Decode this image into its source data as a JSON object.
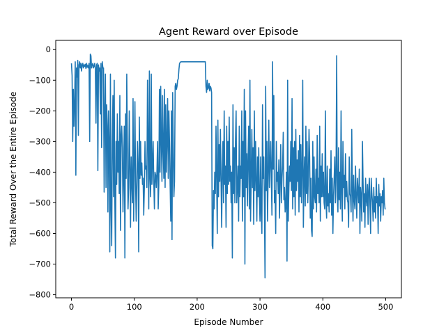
{
  "chart_data": {
    "type": "line",
    "title": "Agent Reward over Episode",
    "xlabel": "Episode Number",
    "ylabel": "Total Reward Over the Entire Episode",
    "xlim": [
      -25,
      525
    ],
    "ylim": [
      -810,
      30
    ],
    "xticks": [
      0,
      100,
      200,
      300,
      400,
      500
    ],
    "yticks": [
      0,
      -100,
      -200,
      -300,
      -400,
      -500,
      -600,
      -700,
      -800
    ],
    "xtick_labels": [
      "0",
      "100",
      "200",
      "300",
      "400",
      "500"
    ],
    "ytick_labels": [
      "0",
      "−100",
      "−200",
      "−300",
      "−400",
      "−500",
      "−600",
      "−700",
      "−800"
    ],
    "grid": false,
    "line_color": "#1f77b4",
    "series": [
      {
        "values": [
          -45,
          -85,
          -300,
          -130,
          -250,
          -180,
          -40,
          -410,
          -60,
          -90,
          -35,
          -280,
          -50,
          -40,
          -60,
          -45,
          -70,
          -50,
          -45,
          -60,
          -50,
          -55,
          -48,
          -62,
          -45,
          -58,
          -52,
          -60,
          -45,
          -300,
          -15,
          -20,
          -60,
          -50,
          -45,
          -60,
          -55,
          -45,
          -60,
          -240,
          -50,
          -45,
          -395,
          -50,
          -70,
          -60,
          -210,
          -45,
          -320,
          -40,
          -60,
          -60,
          -465,
          -200,
          -80,
          -450,
          -180,
          -250,
          -530,
          -200,
          -300,
          -660,
          -80,
          -520,
          -640,
          -300,
          -150,
          -480,
          -100,
          -490,
          -680,
          -300,
          -440,
          -210,
          -400,
          -300,
          -470,
          -150,
          -590,
          -280,
          -250,
          -320,
          -530,
          -400,
          -250,
          -680,
          -210,
          -420,
          -80,
          -320,
          -520,
          -450,
          -200,
          -380,
          -580,
          -350,
          -430,
          -500,
          -160,
          -560,
          -380,
          -170,
          -430,
          -560,
          -440,
          -300,
          -380,
          -660,
          -220,
          -420,
          -300,
          -410,
          -370,
          -440,
          -420,
          -540,
          -450,
          -300,
          -390,
          -380,
          -450,
          -100,
          -300,
          -520,
          -70,
          -420,
          -480,
          -80,
          -440,
          -380,
          -300,
          -430,
          -520,
          -400,
          -410,
          -450,
          -400,
          -300,
          -520,
          -440,
          -130,
          -400,
          -120,
          -300,
          -430,
          -150,
          -320,
          -420,
          -130,
          -450,
          -180,
          -400,
          -300,
          -160,
          -420,
          -200,
          -300,
          -440,
          -560,
          -200,
          -620,
          -140,
          -320,
          -480,
          -430,
          -120,
          -110,
          -130,
          -120,
          -100,
          -95,
          -65,
          -45,
          -42,
          -40,
          -40,
          -40,
          -40,
          -40,
          -40,
          -40,
          -40,
          -40,
          -40,
          -40,
          -40,
          -40,
          -40,
          -40,
          -40,
          -40,
          -40,
          -40,
          -40,
          -40,
          -40,
          -40,
          -40,
          -40,
          -40,
          -40,
          -40,
          -40,
          -40,
          -40,
          -40,
          -40,
          -40,
          -40,
          -40,
          -40,
          -40,
          -40,
          -40,
          -120,
          -140,
          -100,
          -130,
          -125,
          -110,
          -135,
          -120,
          -125,
          -140,
          -640,
          -650,
          -460,
          -520,
          -400,
          -470,
          -250,
          -410,
          -600,
          -230,
          -480,
          -310,
          -430,
          -260,
          -420,
          -580,
          -390,
          -300,
          -500,
          -200,
          -440,
          -380,
          -580,
          -250,
          -470,
          -300,
          -440,
          -220,
          -430,
          -380,
          -500,
          -400,
          -680,
          -180,
          -470,
          -320,
          -500,
          -300,
          -200,
          -500,
          -450,
          -380,
          -560,
          -250,
          -480,
          -380,
          -420,
          -200,
          -560,
          -300,
          -480,
          -130,
          -700,
          -200,
          -450,
          -340,
          -510,
          -350,
          -250,
          -520,
          -100,
          -560,
          -420,
          -260,
          -450,
          -320,
          -570,
          -200,
          -460,
          -300,
          -430,
          -560,
          -350,
          -480,
          -320,
          -480,
          -560,
          -350,
          -530,
          -600,
          -180,
          -420,
          -350,
          -500,
          -745,
          -120,
          -460,
          -300,
          -560,
          -400,
          -230,
          -450,
          -380,
          -300,
          -420,
          -540,
          -40,
          -390,
          -150,
          -500,
          -460,
          -600,
          -300,
          -430,
          -400,
          -470,
          -360,
          -550,
          -420,
          -310,
          -500,
          -420,
          -380,
          -270,
          -490,
          -450,
          -530,
          -510,
          -400,
          -690,
          -100,
          -560,
          -450,
          -380,
          -430,
          -300,
          -460,
          -160,
          -520,
          -320,
          -480,
          -300,
          -540,
          -260,
          -460,
          -360,
          -430,
          -330,
          -530,
          -280,
          -480,
          -310,
          -500,
          -400,
          -100,
          -580,
          -420,
          -350,
          -510,
          -250,
          -470,
          -300,
          -500,
          -410,
          -260,
          -350,
          -550,
          -420,
          -590,
          -610,
          -300,
          -520,
          -350,
          -480,
          -500,
          -390,
          -530,
          -280,
          -470,
          -420,
          -500,
          -250,
          -560,
          -380,
          -480,
          -340,
          -480,
          -400,
          -500,
          -520,
          -200,
          -490,
          -550,
          -380,
          -510,
          -470,
          -530,
          -390,
          -500,
          -330,
          -540,
          -420,
          -600,
          -480,
          -420,
          -350,
          -500,
          -410,
          -20,
          -480,
          -530,
          -320,
          -490,
          -400,
          -520,
          -200,
          -470,
          -560,
          -300,
          -450,
          -410,
          -520,
          -340,
          -480,
          -430,
          -490,
          -500,
          -580,
          -350,
          -470,
          -480,
          -530,
          -260,
          -460,
          -560,
          -410,
          -490,
          -520,
          -380,
          -480,
          -550,
          -420,
          -460,
          -500,
          -390,
          -600,
          -450,
          -480,
          -560,
          -300,
          -430,
          -530,
          -470,
          -580,
          -420,
          -490,
          -510,
          -440,
          -570,
          -460,
          -420,
          -510,
          -600,
          -420,
          -470,
          -500,
          -560,
          -450,
          -530,
          -480,
          -550,
          -420,
          -500,
          -480,
          -600,
          -440,
          -510,
          -470,
          -560,
          -480,
          -500,
          -460,
          -540,
          -420,
          -500,
          -520,
          -520
        ]
      }
    ]
  }
}
